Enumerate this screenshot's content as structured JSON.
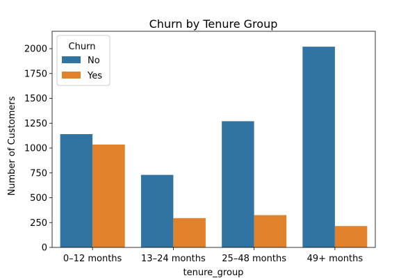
{
  "chart_data": {
    "type": "bar",
    "title": "Churn by Tenure Group",
    "xlabel": "tenure_group",
    "ylabel": "Number of Customers",
    "categories": [
      "0–12 months",
      "13–24 months",
      "25–48 months",
      "49+ months"
    ],
    "series": [
      {
        "name": "No",
        "color": "#3274a1",
        "values": [
          1140,
          730,
          1270,
          2020
        ]
      },
      {
        "name": "Yes",
        "color": "#e1812c",
        "values": [
          1035,
          295,
          325,
          215
        ]
      }
    ],
    "ylim": [
      0,
      2175
    ],
    "yticks": [
      0,
      250,
      500,
      750,
      1000,
      1250,
      1500,
      1750,
      2000
    ],
    "legend": {
      "title": "Churn",
      "placement": "top-left"
    },
    "grid": false
  }
}
